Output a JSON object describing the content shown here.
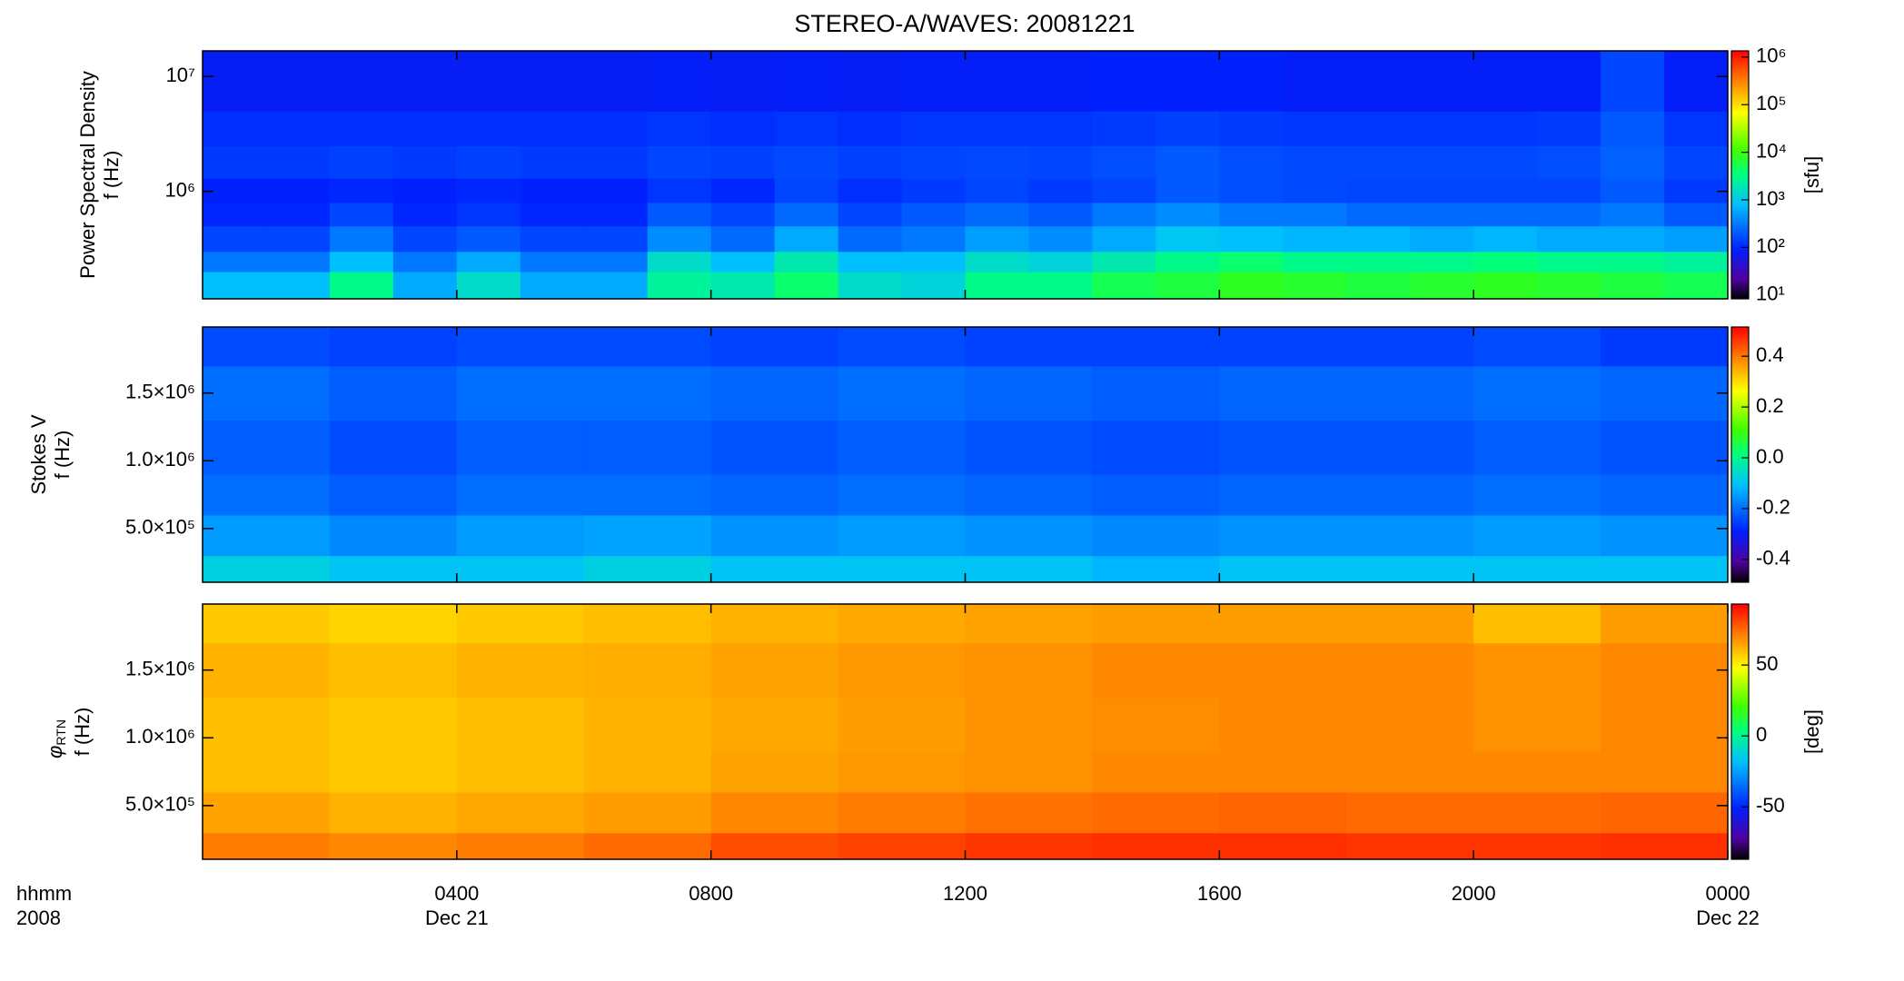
{
  "chart_data": [
    {
      "type": "heatmap",
      "title": "STEREO-A/WAVES: 20081221",
      "ylabel": [
        "Power Spectral Density",
        "f (Hz)"
      ],
      "xlim": [
        0,
        24
      ],
      "xticks": [
        4,
        8,
        12,
        16,
        20
      ],
      "xtick_labels": false,
      "ylim": [
        116000,
        16700000
      ],
      "ylog": true,
      "yticks": [
        {
          "value": 1000000,
          "label": "10⁶"
        },
        {
          "value": 10000000,
          "label": "10⁷"
        }
      ],
      "x_edges": [
        0,
        1,
        2,
        3,
        4,
        5,
        6,
        7,
        8,
        9,
        10,
        11,
        12,
        13,
        14,
        15,
        16,
        17,
        18,
        19,
        20,
        21,
        22,
        23,
        24
      ],
      "y_edges": [
        116000,
        200000,
        300000,
        500000,
        800000,
        1300000,
        2500000,
        5000000,
        16700000
      ],
      "z": [
        [
          800,
          800,
          3000,
          600,
          1500,
          600,
          600,
          2500,
          2000,
          4000,
          1500,
          1200,
          3000,
          3000,
          5000,
          6000,
          8000,
          7000,
          6000,
          7000,
          8000,
          7000,
          6000,
          5000
        ],
        [
          300,
          300,
          800,
          300,
          600,
          300,
          300,
          1500,
          800,
          2000,
          800,
          800,
          1500,
          1200,
          2000,
          3000,
          4000,
          3000,
          3000,
          3000,
          3500,
          3000,
          3000,
          2500
        ],
        [
          150,
          150,
          300,
          150,
          200,
          150,
          150,
          400,
          250,
          600,
          250,
          300,
          500,
          400,
          600,
          900,
          800,
          700,
          700,
          600,
          700,
          600,
          600,
          500
        ],
        [
          100,
          100,
          150,
          100,
          120,
          100,
          100,
          200,
          150,
          250,
          150,
          200,
          250,
          200,
          300,
          400,
          300,
          300,
          250,
          250,
          250,
          250,
          300,
          200
        ],
        [
          90,
          90,
          100,
          90,
          100,
          90,
          90,
          120,
          100,
          150,
          110,
          130,
          150,
          130,
          150,
          200,
          170,
          160,
          150,
          150,
          150,
          150,
          200,
          130
        ],
        [
          130,
          130,
          140,
          130,
          140,
          130,
          130,
          150,
          140,
          160,
          140,
          150,
          160,
          150,
          170,
          200,
          170,
          160,
          160,
          160,
          160,
          170,
          220,
          150
        ],
        [
          110,
          110,
          110,
          110,
          110,
          110,
          110,
          120,
          110,
          120,
          110,
          120,
          120,
          120,
          130,
          140,
          130,
          120,
          120,
          120,
          120,
          130,
          200,
          120
        ],
        [
          80,
          80,
          80,
          80,
          80,
          80,
          80,
          85,
          80,
          85,
          80,
          85,
          85,
          85,
          90,
          90,
          90,
          85,
          85,
          85,
          85,
          85,
          150,
          85
        ]
      ],
      "clim": [
        8.3,
        1350000
      ],
      "clog": true,
      "cticks": [
        {
          "value": 10,
          "label": "10¹"
        },
        {
          "value": 100,
          "label": "10²"
        },
        {
          "value": 1000,
          "label": "10³"
        },
        {
          "value": 10000,
          "label": "10⁴"
        },
        {
          "value": 100000,
          "label": "10⁵"
        },
        {
          "value": 1000000,
          "label": "10⁶"
        }
      ],
      "clabel": "[sfu]",
      "colormap": [
        {
          "pos": 0,
          "color": "#000000"
        },
        {
          "pos": 0.08,
          "color": "#5000a0"
        },
        {
          "pos": 0.2,
          "color": "#0020ff"
        },
        {
          "pos": 0.38,
          "color": "#00c0ff"
        },
        {
          "pos": 0.5,
          "color": "#00ff80"
        },
        {
          "pos": 0.6,
          "color": "#40ff00"
        },
        {
          "pos": 0.75,
          "color": "#ffff00"
        },
        {
          "pos": 0.88,
          "color": "#ff8000"
        },
        {
          "pos": 1,
          "color": "#ff0000"
        }
      ]
    },
    {
      "type": "heatmap",
      "ylabel": [
        "Stokes V",
        "f (Hz)"
      ],
      "xlim": [
        0,
        24
      ],
      "xticks": [
        4,
        8,
        12,
        16,
        20
      ],
      "xtick_labels": false,
      "ylim": [
        104000,
        1987000
      ],
      "ylog": false,
      "yticks": [
        {
          "value": 500000,
          "label": "5.0×10⁵"
        },
        {
          "value": 1000000,
          "label": "1.0×10⁶"
        },
        {
          "value": 1500000,
          "label": "1.5×10⁶"
        }
      ],
      "x_edges": [
        0,
        2,
        4,
        6,
        8,
        10,
        12,
        14,
        16,
        18,
        20,
        22,
        24
      ],
      "y_edges": [
        104000,
        300000,
        600000,
        900000,
        1300000,
        1700000,
        1987000
      ],
      "z": [
        [
          -0.08,
          -0.1,
          -0.1,
          -0.08,
          -0.1,
          -0.1,
          -0.1,
          -0.12,
          -0.1,
          -0.1,
          -0.1,
          -0.1
        ],
        [
          -0.15,
          -0.17,
          -0.15,
          -0.14,
          -0.16,
          -0.15,
          -0.16,
          -0.17,
          -0.16,
          -0.16,
          -0.15,
          -0.16
        ],
        [
          -0.2,
          -0.22,
          -0.2,
          -0.2,
          -0.21,
          -0.2,
          -0.21,
          -0.22,
          -0.21,
          -0.21,
          -0.2,
          -0.21
        ],
        [
          -0.22,
          -0.24,
          -0.22,
          -0.22,
          -0.23,
          -0.22,
          -0.23,
          -0.24,
          -0.23,
          -0.23,
          -0.22,
          -0.23
        ],
        [
          -0.2,
          -0.22,
          -0.2,
          -0.2,
          -0.21,
          -0.2,
          -0.21,
          -0.22,
          -0.21,
          -0.21,
          -0.2,
          -0.21
        ],
        [
          -0.24,
          -0.25,
          -0.24,
          -0.24,
          -0.25,
          -0.24,
          -0.25,
          -0.25,
          -0.25,
          -0.25,
          -0.24,
          -0.26
        ]
      ],
      "clim": [
        -0.49,
        0.515
      ],
      "clog": false,
      "cticks": [
        -0.4,
        -0.2,
        {
          "value": 0,
          "label": "0.0"
        },
        0.2,
        0.4
      ],
      "colormap": [
        {
          "pos": 0,
          "color": "#000000"
        },
        {
          "pos": 0.08,
          "color": "#5000a0"
        },
        {
          "pos": 0.2,
          "color": "#0020ff"
        },
        {
          "pos": 0.38,
          "color": "#00c0ff"
        },
        {
          "pos": 0.5,
          "color": "#00ff80"
        },
        {
          "pos": 0.6,
          "color": "#40ff00"
        },
        {
          "pos": 0.75,
          "color": "#ffff00"
        },
        {
          "pos": 0.88,
          "color": "#ff8000"
        },
        {
          "pos": 1,
          "color": "#ff0000"
        }
      ]
    },
    {
      "type": "heatmap",
      "ylabel_symbol": "φ",
      "ylabel_sub": "RTN",
      "ylabel": [
        "f (Hz)"
      ],
      "xlim": [
        0,
        24
      ],
      "xtick_labels": true,
      "xticks": [
        {
          "value": 4,
          "label": "0400"
        },
        {
          "value": 8,
          "label": "0800"
        },
        {
          "value": 12,
          "label": "1200"
        },
        {
          "value": 16,
          "label": "1600"
        },
        {
          "value": 20,
          "label": "2000"
        },
        {
          "value": 24,
          "label": "0000"
        }
      ],
      "date_labels": [
        {
          "value": 4,
          "label": "Dec 21"
        },
        {
          "value": 24,
          "label": "Dec 22"
        }
      ],
      "axis_notes": [
        "hhmm",
        "2008"
      ],
      "ylim": [
        104000,
        1987000
      ],
      "ylog": false,
      "yticks": [
        {
          "value": 500000,
          "label": "5.0×10⁵"
        },
        {
          "value": 1000000,
          "label": "1.0×10⁶"
        },
        {
          "value": 1500000,
          "label": "1.5×10⁶"
        }
      ],
      "x_edges": [
        0,
        2,
        4,
        6,
        8,
        10,
        12,
        14,
        16,
        18,
        20,
        22,
        24
      ],
      "y_edges": [
        104000,
        300000,
        600000,
        900000,
        1300000,
        1700000,
        1987000
      ],
      "z": [
        [
          72,
          70,
          72,
          75,
          80,
          82,
          84,
          85,
          85,
          84,
          84,
          85
        ],
        [
          65,
          62,
          64,
          66,
          70,
          72,
          74,
          75,
          76,
          75,
          75,
          76
        ],
        [
          60,
          58,
          60,
          62,
          65,
          67,
          68,
          70,
          70,
          70,
          70,
          70
        ],
        [
          60,
          58,
          60,
          62,
          64,
          66,
          68,
          69,
          70,
          70,
          68,
          70
        ],
        [
          62,
          60,
          62,
          63,
          65,
          67,
          68,
          70,
          70,
          70,
          68,
          70
        ],
        [
          58,
          56,
          58,
          60,
          62,
          64,
          65,
          66,
          66,
          66,
          60,
          66
        ]
      ],
      "clim": [
        -87,
        93
      ],
      "clog": false,
      "cticks": [
        -50,
        0,
        50
      ],
      "clabel": "[deg]",
      "colormap": [
        {
          "pos": 0,
          "color": "#000000"
        },
        {
          "pos": 0.08,
          "color": "#5000a0"
        },
        {
          "pos": 0.2,
          "color": "#0020ff"
        },
        {
          "pos": 0.38,
          "color": "#00c0ff"
        },
        {
          "pos": 0.5,
          "color": "#00ff80"
        },
        {
          "pos": 0.6,
          "color": "#40ff00"
        },
        {
          "pos": 0.75,
          "color": "#ffff00"
        },
        {
          "pos": 0.88,
          "color": "#ff8000"
        },
        {
          "pos": 1,
          "color": "#ff0000"
        }
      ]
    }
  ]
}
